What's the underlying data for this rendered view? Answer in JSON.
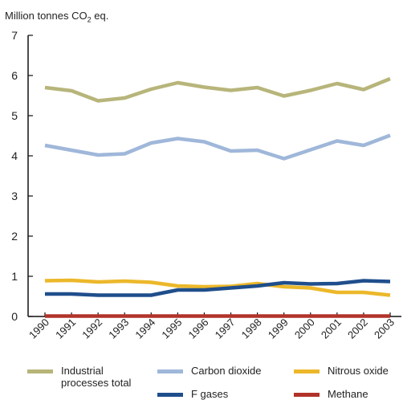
{
  "chart_data": {
    "type": "line",
    "unit_label": "Million tonnes CO",
    "unit_sub": "2",
    "unit_suffix": " eq.",
    "x": [
      "1990",
      "1991",
      "1992",
      "1993",
      "1994",
      "1995",
      "1996",
      "1997",
      "1998",
      "1999",
      "2000",
      "2001",
      "2002",
      "2003"
    ],
    "ylim": [
      0,
      7
    ],
    "yticks": [
      0,
      1,
      2,
      3,
      4,
      5,
      6,
      7
    ],
    "grid": false,
    "legend_position": "bottom",
    "series": [
      {
        "key": "industrial",
        "name": "Industrial processes total",
        "name_lines": [
          "Industrial",
          "processes total"
        ],
        "color": "#b7b57a",
        "values": [
          5.7,
          5.62,
          5.37,
          5.44,
          5.66,
          5.82,
          5.71,
          5.63,
          5.7,
          5.49,
          5.63,
          5.8,
          5.65,
          5.92
        ]
      },
      {
        "key": "co2",
        "name": "Carbon dioxide",
        "name_lines": [
          "Carbon dioxide"
        ],
        "color": "#9fb7d9",
        "values": [
          4.26,
          4.14,
          4.02,
          4.05,
          4.32,
          4.43,
          4.35,
          4.12,
          4.14,
          3.93,
          4.15,
          4.37,
          4.26,
          4.51
        ]
      },
      {
        "key": "n2o",
        "name": "Nitrous oxide",
        "name_lines": [
          "Nitrous oxide"
        ],
        "color": "#ecb82a",
        "values": [
          0.89,
          0.9,
          0.86,
          0.88,
          0.85,
          0.76,
          0.74,
          0.75,
          0.82,
          0.74,
          0.71,
          0.6,
          0.6,
          0.53
        ]
      },
      {
        "key": "fgases",
        "name": "F gases",
        "name_lines": [
          "F gases"
        ],
        "color": "#1f4e8c",
        "values": [
          0.56,
          0.56,
          0.53,
          0.53,
          0.53,
          0.66,
          0.66,
          0.71,
          0.76,
          0.84,
          0.81,
          0.82,
          0.89,
          0.87
        ]
      },
      {
        "key": "methane",
        "name": "Methane",
        "name_lines": [
          "Methane"
        ],
        "color": "#b2322a",
        "values": [
          0.01,
          0.01,
          0.01,
          0.01,
          0.01,
          0.01,
          0.01,
          0.01,
          0.01,
          0.01,
          0.01,
          0.01,
          0.01,
          0.01
        ]
      }
    ]
  }
}
